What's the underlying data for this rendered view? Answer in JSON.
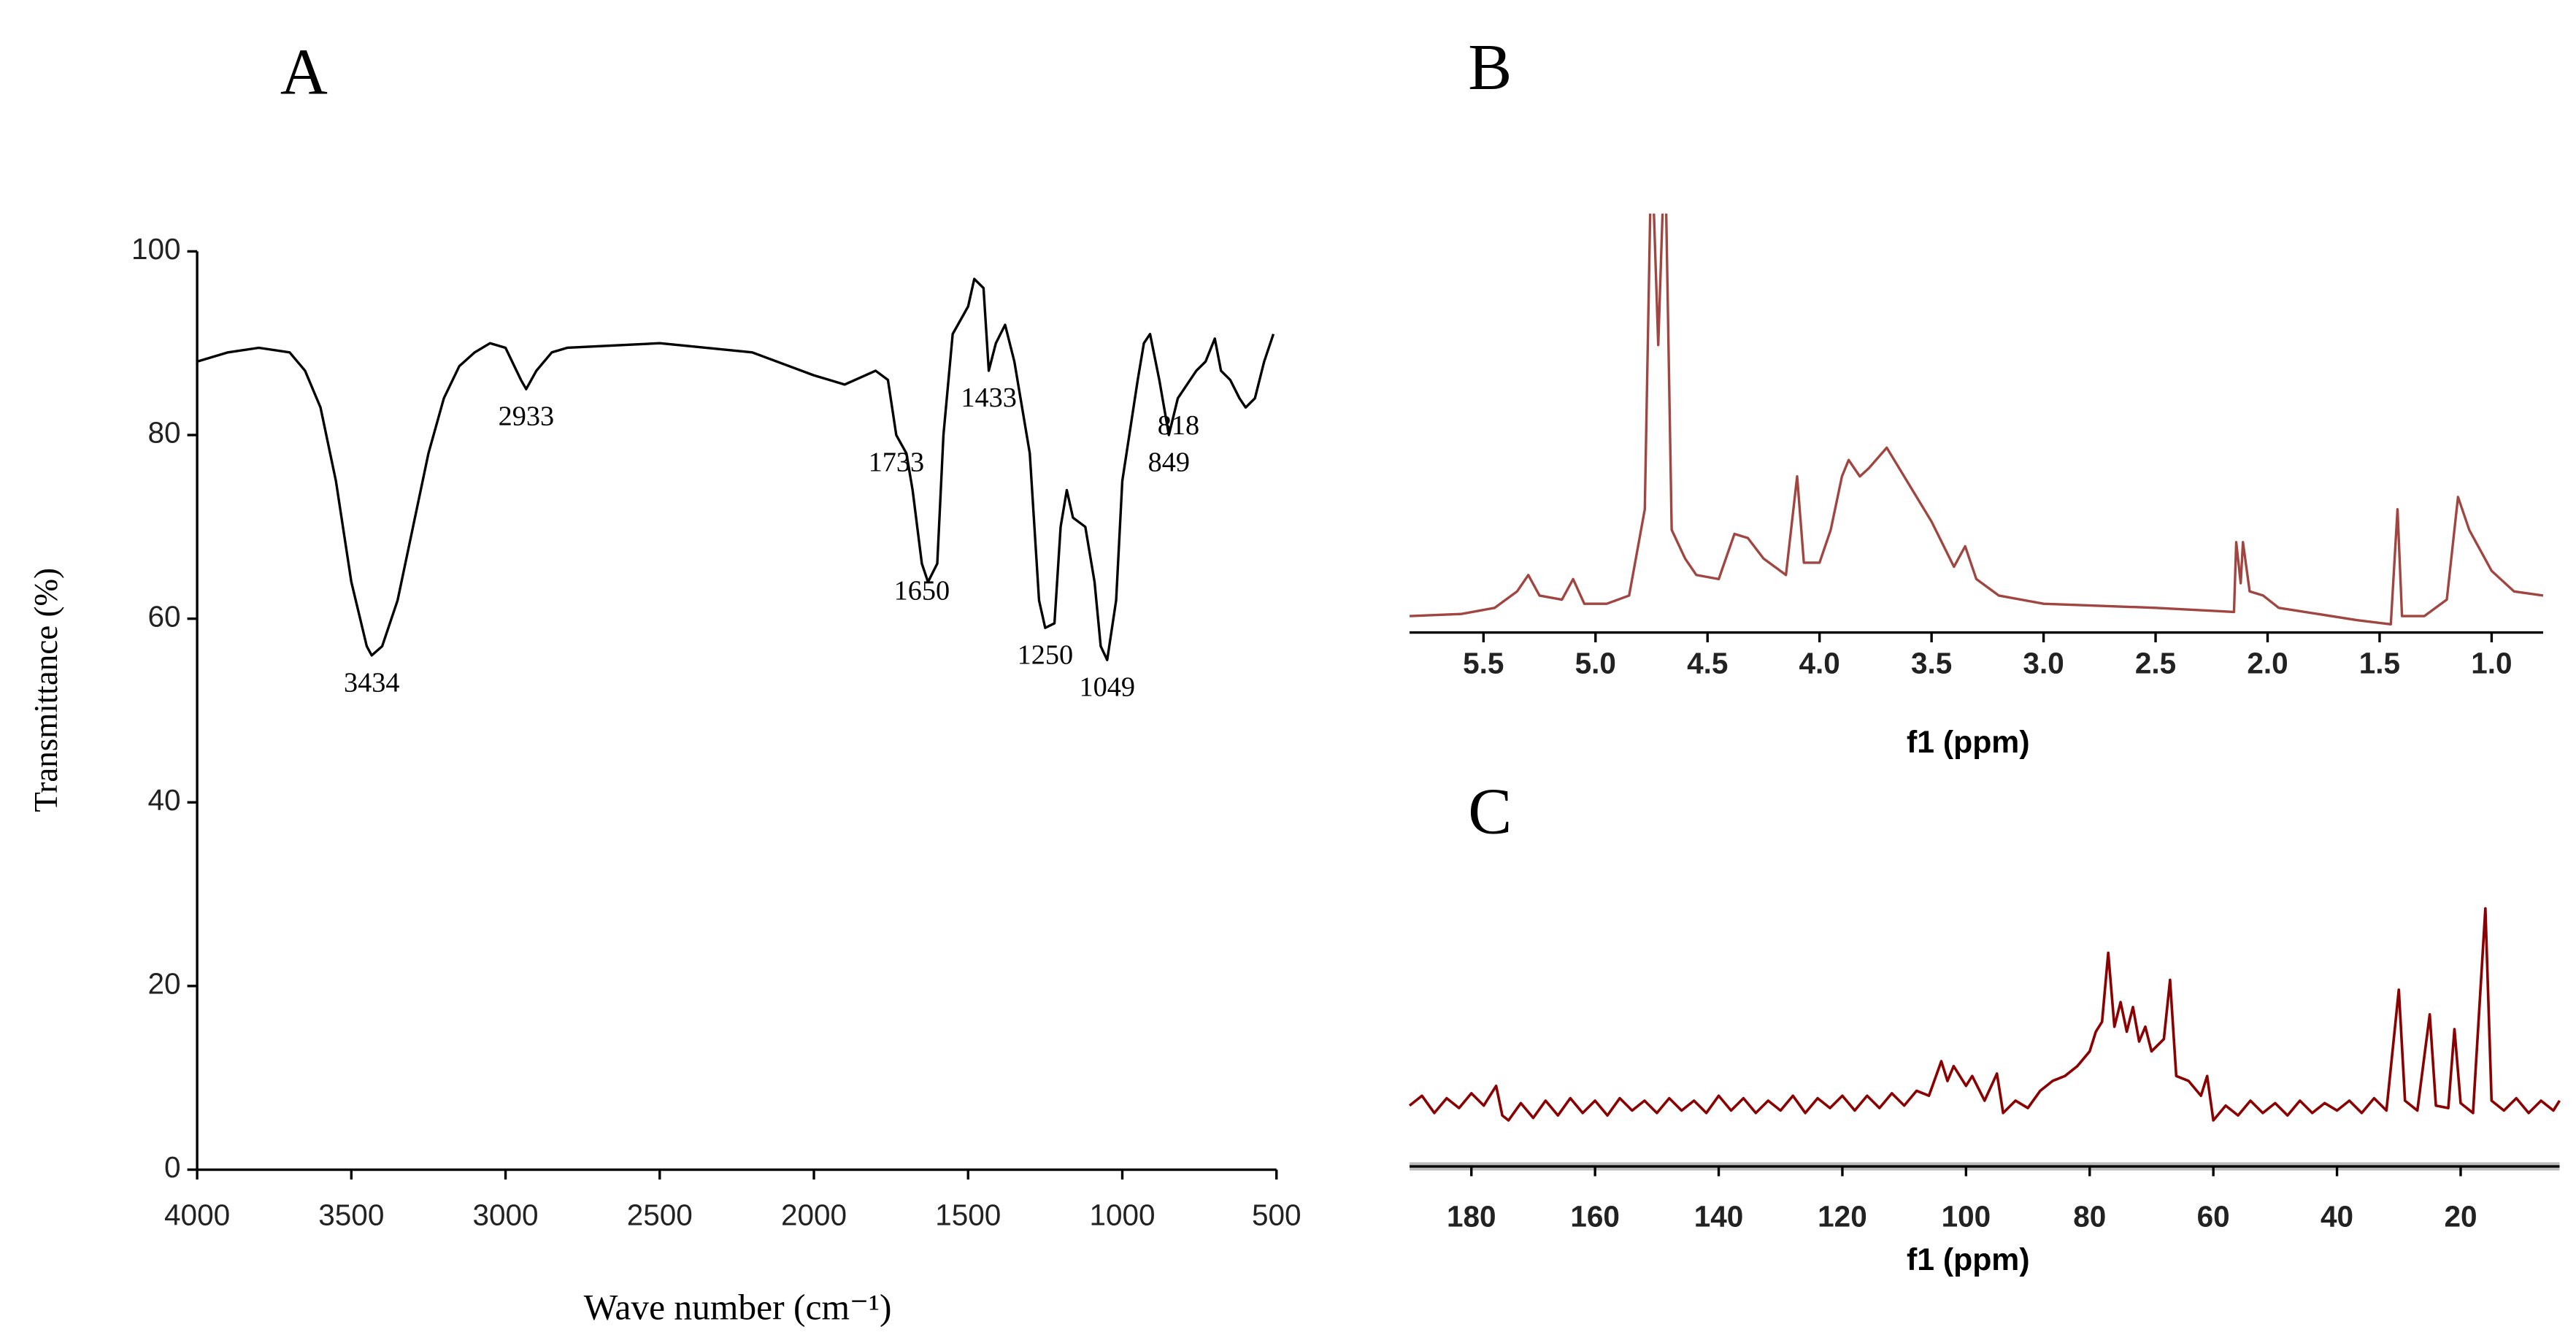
{
  "chart_data": [
    {
      "type": "line",
      "panel_label": "A",
      "xlabel": "Wave number (cm⁻¹)",
      "ylabel": "Transmittance (%)",
      "xlim": [
        4000,
        500
      ],
      "ylim": [
        0,
        100
      ],
      "xticks": [
        4000,
        3500,
        3000,
        2500,
        2000,
        1500,
        1000,
        500
      ],
      "yticks": [
        0,
        20,
        40,
        60,
        80,
        100
      ],
      "x": [
        4000,
        3900,
        3800,
        3700,
        3650,
        3600,
        3550,
        3500,
        3450,
        3434,
        3400,
        3350,
        3300,
        3250,
        3200,
        3150,
        3100,
        3050,
        3000,
        2950,
        2933,
        2900,
        2850,
        2800,
        2500,
        2200,
        2000,
        1900,
        1800,
        1760,
        1733,
        1700,
        1680,
        1650,
        1630,
        1600,
        1580,
        1550,
        1500,
        1480,
        1450,
        1433,
        1410,
        1380,
        1350,
        1300,
        1270,
        1250,
        1220,
        1200,
        1180,
        1160,
        1120,
        1090,
        1070,
        1049,
        1020,
        1000,
        950,
        930,
        910,
        880,
        849,
        820,
        800,
        760,
        730,
        700,
        680,
        650,
        620,
        600,
        570,
        540,
        510
      ],
      "series": [
        {
          "color": "#000000",
          "values": [
            88,
            89,
            89.5,
            89,
            87,
            83,
            75,
            64,
            57,
            56,
            57,
            62,
            70,
            78,
            84,
            87.5,
            89,
            90,
            89.5,
            86,
            85,
            87,
            89,
            89.5,
            90,
            89,
            86.5,
            85.5,
            87,
            86,
            80,
            78,
            74,
            66,
            64,
            66,
            80,
            91,
            94,
            97,
            96,
            87,
            90,
            92,
            88,
            78,
            62,
            59,
            59.5,
            70,
            74,
            71,
            70,
            64,
            57,
            55.5,
            62,
            75,
            86,
            90,
            91,
            86,
            80,
            84,
            85,
            87,
            88,
            90.5,
            87,
            86,
            84,
            83,
            84,
            88,
            91
          ]
        }
      ],
      "annotations": [
        {
          "label": "3434",
          "x": 3434,
          "y": 56
        },
        {
          "label": "2933",
          "x": 2933,
          "y": 85
        },
        {
          "label": "1733",
          "x": 1733,
          "y": 80
        },
        {
          "label": "1650",
          "x": 1650,
          "y": 66
        },
        {
          "label": "1433",
          "x": 1433,
          "y": 87
        },
        {
          "label": "1250",
          "x": 1250,
          "y": 59
        },
        {
          "label": "1049",
          "x": 1049,
          "y": 55.5
        },
        {
          "label": "849",
          "x": 849,
          "y": 80
        },
        {
          "label": "818",
          "x": 818,
          "y": 84
        }
      ]
    },
    {
      "type": "line",
      "panel_label": "B",
      "xlabel": "f1 (ppm)",
      "xlim": [
        5.83,
        0.77
      ],
      "xticks": [
        5.5,
        {
          "value": 5,
          "label": "5.0"
        },
        4.5,
        {
          "value": 4,
          "label": "4.0"
        },
        3.5,
        {
          "value": 3,
          "label": "3.0"
        },
        2.5,
        {
          "value": 2,
          "label": "2.0"
        },
        1.5,
        {
          "value": 1,
          "label": "1.0"
        }
      ],
      "x": [
        5.83,
        5.6,
        5.45,
        5.35,
        5.3,
        5.25,
        5.15,
        5.1,
        5.05,
        4.95,
        4.85,
        4.78,
        4.75,
        4.72,
        4.69,
        4.66,
        4.6,
        4.55,
        4.45,
        4.38,
        4.32,
        4.25,
        4.2,
        4.15,
        4.1,
        4.07,
        4.0,
        3.95,
        3.9,
        3.87,
        3.82,
        3.78,
        3.7,
        3.6,
        3.5,
        3.4,
        3.35,
        3.3,
        3.2,
        3.0,
        2.5,
        2.15,
        2.14,
        2.12,
        2.11,
        2.08,
        2.02,
        1.95,
        1.6,
        1.45,
        1.42,
        1.4,
        1.3,
        1.2,
        1.15,
        1.1,
        1.0,
        0.9,
        0.77
      ],
      "series": [
        {
          "color": "#a0453f",
          "values": [
            4,
            4.5,
            6,
            10,
            14,
            9,
            8,
            13,
            7,
            7,
            9,
            30,
            120,
            70,
            120,
            25,
            18,
            14,
            13,
            24,
            23,
            18,
            16,
            14,
            38,
            17,
            17,
            25,
            38,
            42,
            38,
            40,
            45,
            36,
            27,
            16,
            21,
            13,
            9,
            7,
            6,
            5,
            22,
            12,
            22,
            10,
            9,
            6,
            3,
            2,
            30,
            4,
            4,
            8,
            33,
            25,
            15,
            10,
            9
          ]
        }
      ]
    },
    {
      "type": "line",
      "panel_label": "C",
      "xlabel": "f1 (ppm)",
      "xlim": [
        190,
        4
      ],
      "xticks": [
        180,
        160,
        140,
        120,
        100,
        80,
        60,
        40,
        20
      ],
      "x": [
        190,
        188,
        186,
        184,
        182,
        180,
        178,
        176,
        175,
        174,
        172,
        170,
        168,
        166,
        164,
        162,
        160,
        158,
        156,
        154,
        152,
        150,
        148,
        146,
        144,
        142,
        140,
        138,
        136,
        134,
        132,
        130,
        128,
        126,
        124,
        122,
        120,
        118,
        116,
        114,
        112,
        110,
        108,
        106,
        104,
        103,
        102,
        100,
        99,
        97,
        95,
        94,
        92,
        90,
        88,
        86,
        84,
        82,
        80,
        79,
        78,
        77,
        76,
        75,
        74,
        73,
        72,
        71,
        70,
        68,
        67,
        66,
        64,
        62,
        61,
        60,
        58,
        56,
        54,
        52,
        50,
        48,
        46,
        44,
        42,
        40,
        38,
        36,
        34,
        32,
        30,
        29,
        27,
        25,
        24,
        22,
        21,
        20,
        18,
        16,
        15,
        13,
        11,
        9,
        7,
        5,
        4
      ],
      "series": [
        {
          "color": "#8b0000",
          "values": [
            18,
            22,
            15,
            21,
            17,
            23,
            18,
            26,
            14,
            12,
            19,
            13,
            20,
            14,
            21,
            15,
            20,
            14,
            21,
            16,
            20,
            15,
            21,
            16,
            20,
            15,
            22,
            16,
            21,
            15,
            20,
            16,
            22,
            15,
            21,
            17,
            22,
            16,
            22,
            17,
            23,
            18,
            24,
            22,
            36,
            28,
            34,
            26,
            30,
            20,
            31,
            15,
            20,
            17,
            24,
            28,
            30,
            34,
            40,
            48,
            52,
            80,
            50,
            60,
            48,
            58,
            44,
            50,
            40,
            45,
            69,
            30,
            28,
            22,
            30,
            12,
            18,
            14,
            20,
            15,
            19,
            14,
            20,
            15,
            19,
            16,
            20,
            15,
            21,
            16,
            65,
            20,
            16,
            55,
            18,
            17,
            49,
            19,
            15,
            98,
            20,
            16,
            21,
            15,
            20,
            16,
            20
          ]
        }
      ]
    }
  ]
}
